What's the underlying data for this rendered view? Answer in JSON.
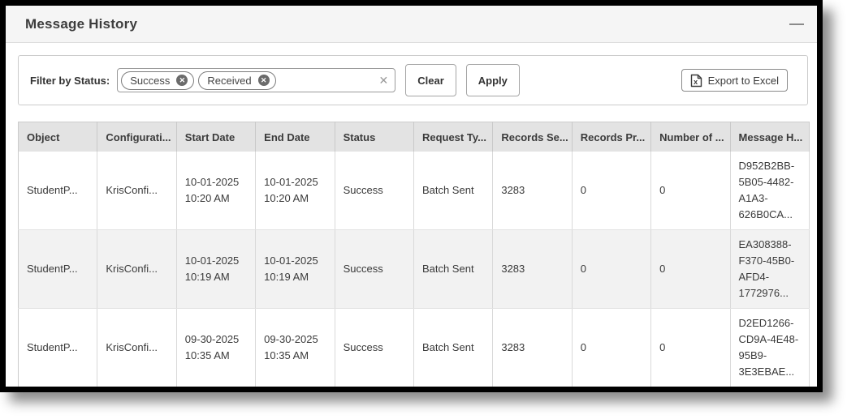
{
  "panel": {
    "title": "Message History"
  },
  "filter": {
    "label": "Filter by Status:",
    "chips": [
      {
        "label": "Success"
      },
      {
        "label": "Received"
      }
    ],
    "chip_remove_glyph": "✕",
    "select_clear_glyph": "✕",
    "clear_button": "Clear",
    "apply_button": "Apply",
    "export_button": "Export to Excel"
  },
  "table": {
    "columns": [
      "Object",
      "Configurati...",
      "Start Date",
      "End Date",
      "Status",
      "Request Ty...",
      "Records Se...",
      "Records Pr...",
      "Number of ...",
      "Message H..."
    ],
    "rows": [
      [
        "StudentP...",
        "KrisConfi...",
        "10-01-2025 10:20 AM",
        "10-01-2025 10:20 AM",
        "Success",
        "Batch Sent",
        "3283",
        "0",
        "0",
        "D952B2BB-5B05-4482-A1A3-626B0CA..."
      ],
      [
        "StudentP...",
        "KrisConfi...",
        "10-01-2025 10:19 AM",
        "10-01-2025 10:19 AM",
        "Success",
        "Batch Sent",
        "3283",
        "0",
        "0",
        "EA308388-F370-45B0-AFD4-1772976..."
      ],
      [
        "StudentP...",
        "KrisConfi...",
        "09-30-2025 10:35 AM",
        "09-30-2025 10:35 AM",
        "Success",
        "Batch Sent",
        "3283",
        "0",
        "0",
        "D2ED1266-CD9A-4E48-95B9-3E3EBAE..."
      ]
    ]
  },
  "colors": {
    "header_bar_bg": "#f5f5f5",
    "table_header_bg": "#e3e3e3",
    "row_stripe_bg": "#f2f2f2",
    "frame_border": "#000000"
  }
}
